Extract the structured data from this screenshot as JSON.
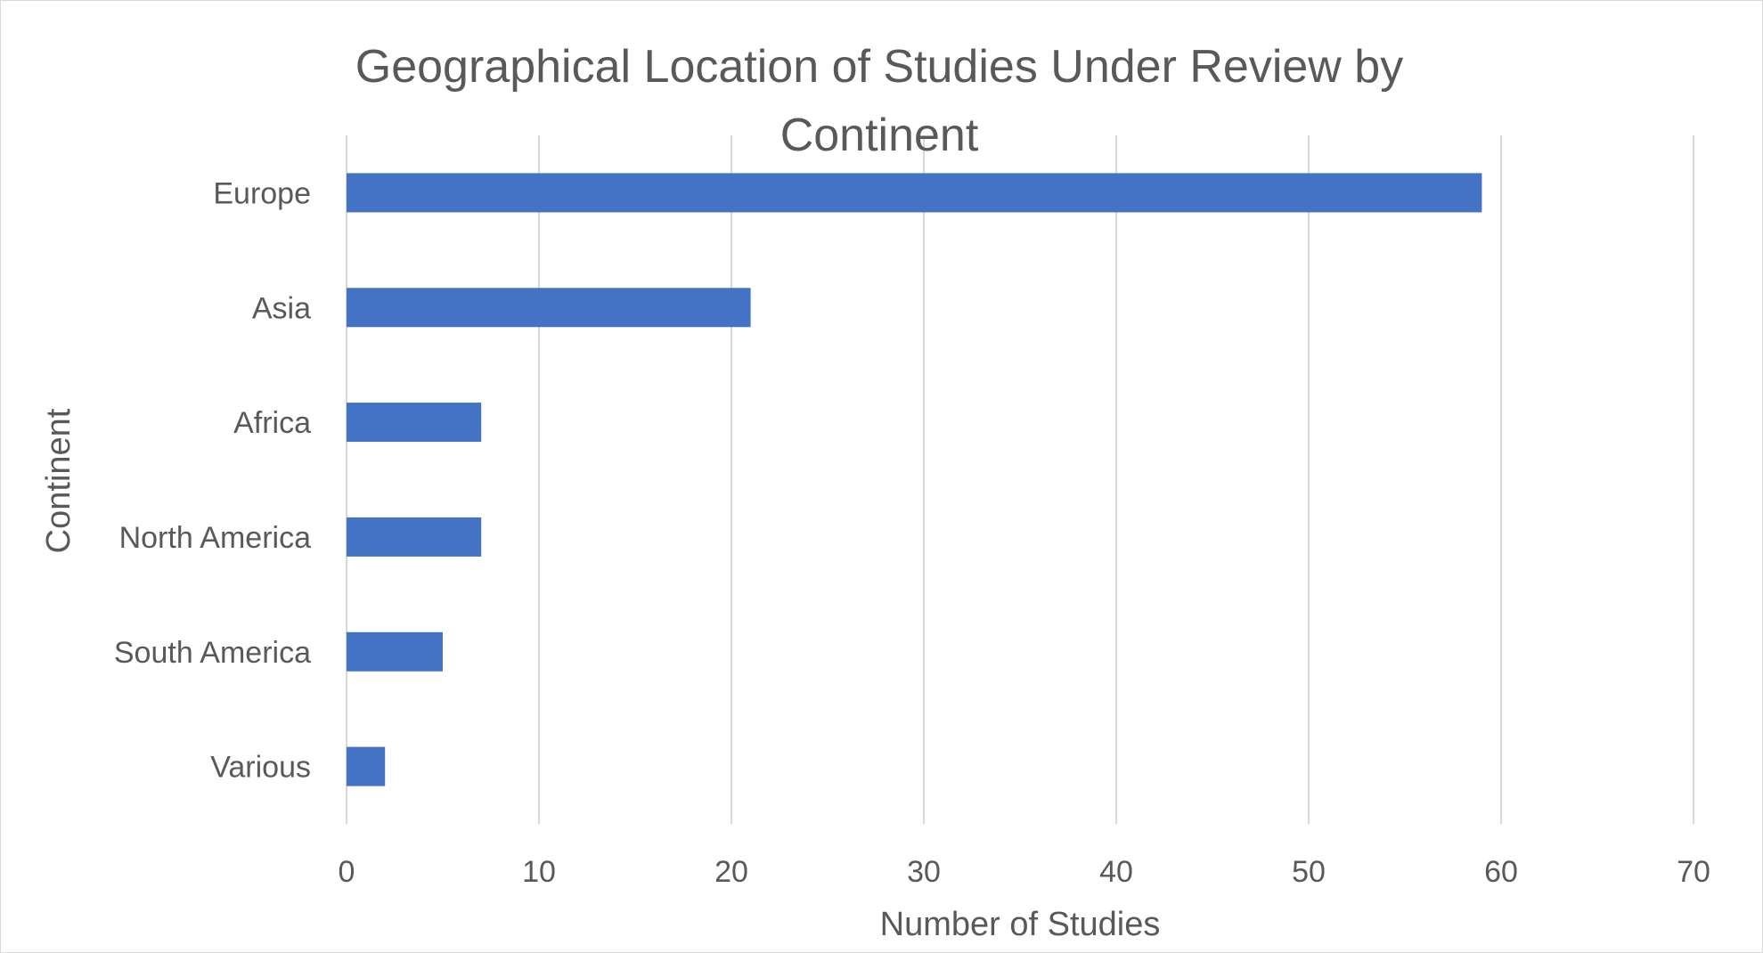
{
  "chart_data": {
    "type": "bar",
    "orientation": "horizontal",
    "title_lines": [
      "Geographical Location of Studies Under Review by",
      "Continent"
    ],
    "xlabel": "Number of Studies",
    "ylabel": "Continent",
    "categories": [
      "Europe",
      "Asia",
      "Africa",
      "North America",
      "South America",
      "Various"
    ],
    "values": [
      59,
      21,
      7,
      7,
      5,
      2
    ],
    "xlim": [
      0,
      70
    ],
    "xticks": [
      0,
      10,
      20,
      30,
      40,
      50,
      60,
      70
    ],
    "grid": true,
    "legend": "none",
    "bar_color": "#4472C4"
  }
}
